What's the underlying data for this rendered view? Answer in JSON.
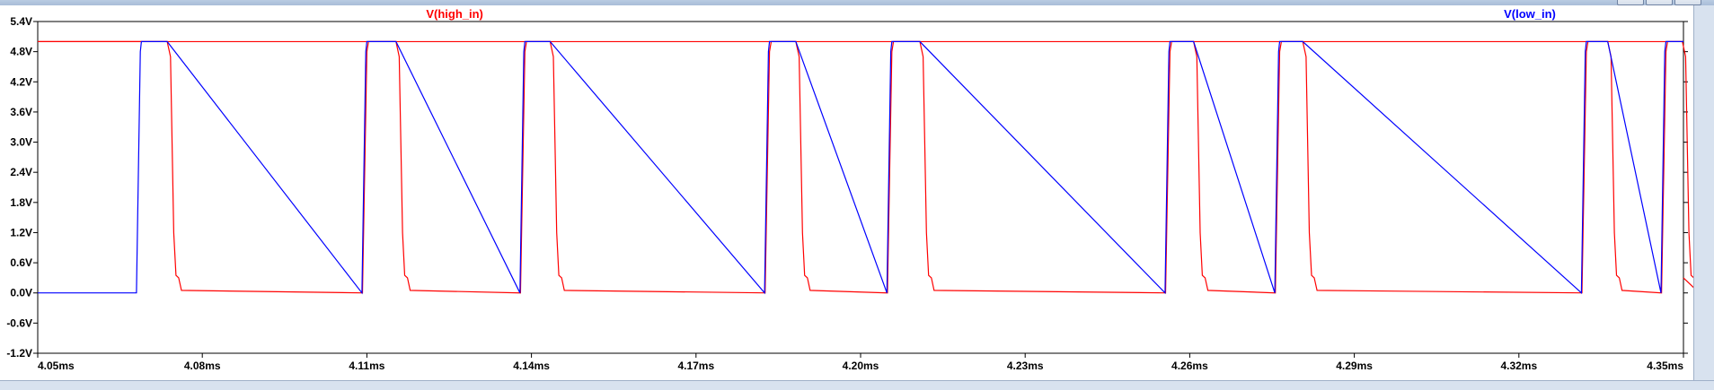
{
  "window": {
    "title": ""
  },
  "chart_data": {
    "type": "line",
    "title": "",
    "xlabel": "",
    "ylabel": "",
    "xlim": [
      4.05,
      4.35
    ],
    "ylim": [
      -1.2,
      5.4
    ],
    "x_unit": "ms",
    "y_unit": "V",
    "x_ticks": [
      "4.05ms",
      "4.08ms",
      "4.11ms",
      "4.14ms",
      "4.17ms",
      "4.20ms",
      "4.23ms",
      "4.26ms",
      "4.29ms",
      "4.32ms",
      "4.35ms"
    ],
    "y_ticks": [
      "5.4V",
      "4.8V",
      "4.2V",
      "3.6V",
      "3.0V",
      "2.4V",
      "1.8V",
      "1.2V",
      "0.6V",
      "0.0V",
      "-0.6V",
      "-1.2V"
    ],
    "grid": false,
    "legend_position": "top",
    "series": [
      {
        "name": "V(high_in)",
        "color": "#ff0000",
        "points": [
          [
            4.05,
            5.0
          ],
          [
            4.35,
            5.0
          ]
        ],
        "pulses_high_ms": [
          [
            4.0689,
            4.0736
          ],
          [
            4.11,
            4.1153
          ],
          [
            4.1388,
            4.1434
          ],
          [
            4.1834,
            4.1882
          ],
          [
            4.2057,
            4.2108
          ],
          [
            4.2564,
            4.2607
          ],
          [
            4.2764,
            4.2806
          ],
          [
            4.3323,
            4.3362
          ],
          [
            4.3468,
            4.3498
          ]
        ],
        "low_ms": [
          [
            4.0736,
            4.11
          ],
          [
            4.1153,
            4.1388
          ],
          [
            4.1434,
            4.1834
          ],
          [
            4.1882,
            4.2057
          ],
          [
            4.2108,
            4.2564
          ],
          [
            4.2607,
            4.2764
          ],
          [
            4.2806,
            4.3323
          ],
          [
            4.3362,
            4.3468
          ]
        ],
        "high_v": 5.0,
        "low_v": 0.0
      },
      {
        "name": "V(low_in)",
        "color": "#0000ff",
        "high_v": 5.0,
        "low_v": 0.0,
        "pulses_high_ms": [
          [
            4.0689,
            4.0736
          ],
          [
            4.11,
            4.1153
          ],
          [
            4.1388,
            4.1434
          ],
          [
            4.1834,
            4.1882
          ],
          [
            4.2057,
            4.2108
          ],
          [
            4.2564,
            4.2607
          ],
          [
            4.2764,
            4.2806
          ],
          [
            4.3323,
            4.3362
          ],
          [
            4.3468,
            4.3498
          ]
        ],
        "low_ms": [
          [
            4.05,
            4.0689
          ],
          [
            4.1153,
            4.1388
          ],
          [
            4.1882,
            4.2057
          ],
          [
            4.2607,
            4.2764
          ],
          [
            4.3362,
            4.3468
          ]
        ]
      }
    ]
  }
}
